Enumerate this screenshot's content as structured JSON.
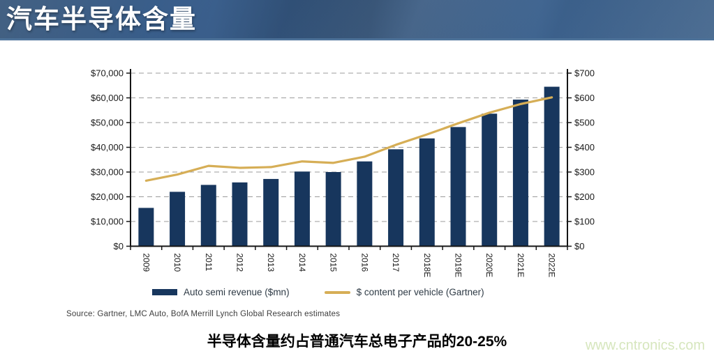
{
  "header": {
    "title": "汽车半导体含量"
  },
  "chart_data": {
    "type": "bar",
    "title": "",
    "categories": [
      "2009",
      "2010",
      "2011",
      "2012",
      "2013",
      "2014",
      "2015",
      "2016",
      "2017",
      "2018E",
      "2019E",
      "2020E",
      "2021E",
      "2022E"
    ],
    "series": [
      {
        "name": "Auto semi revenue ($mn)",
        "type": "bar",
        "axis": "left",
        "color": "#17365d",
        "values": [
          15500,
          22000,
          24800,
          25800,
          27200,
          30200,
          30000,
          34300,
          39200,
          43600,
          48200,
          53600,
          59300,
          64500
        ]
      },
      {
        "name": "$ content per vehicle (Gartner)",
        "type": "line",
        "axis": "right",
        "color": "#d6ae56",
        "values": [
          265,
          290,
          325,
          317,
          320,
          343,
          337,
          362,
          410,
          452,
          497,
          540,
          575,
          602
        ]
      }
    ],
    "left_axis": {
      "min": 0,
      "max": 70000,
      "ticks": [
        "$0",
        "$10,000",
        "$20,000",
        "$30,000",
        "$40,000",
        "$50,000",
        "$60,000",
        "$70,000"
      ]
    },
    "right_axis": {
      "min": 0,
      "max": 700,
      "ticks": [
        "$0",
        "$100",
        "$200",
        "$300",
        "$400",
        "$500",
        "$600",
        "$700"
      ]
    },
    "grid": "horizontal dashed",
    "legend_position": "bottom"
  },
  "source_note": "Source:  Gartner, LMC Auto, BofA Merrill Lynch Global Research estimates",
  "caption": "半导体含量约占普通汽车总电子产品的20-25%",
  "watermark": "www.cntronics.com"
}
